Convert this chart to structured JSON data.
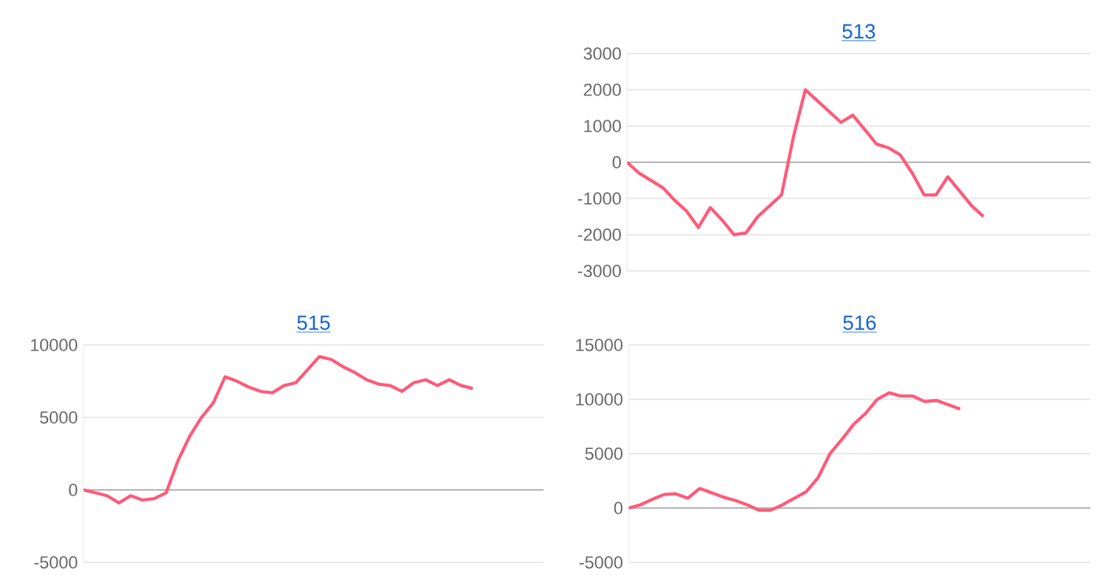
{
  "chart_data": [
    {
      "type": "line",
      "title": "513",
      "categories": [
        null,
        null,
        null,
        null,
        null,
        null,
        null,
        null,
        null,
        null,
        null,
        null,
        null,
        null,
        null,
        null,
        null,
        null,
        null,
        null,
        null,
        null,
        null,
        null,
        null,
        null,
        null,
        null,
        null,
        null,
        null,
        null,
        null,
        null,
        null,
        null,
        null,
        null,
        null,
        null
      ],
      "series": [
        {
          "color": "#ff5a78",
          "values": [
            0,
            -300,
            -500,
            -700,
            -1050,
            -1350,
            -1800,
            -1250,
            -1600,
            -2000,
            -1950,
            -1500,
            -1200,
            -900,
            700,
            2000,
            1700,
            1400,
            1100,
            1300,
            900,
            500,
            400,
            200,
            -300,
            -900,
            -900,
            -400,
            -800,
            -1200,
            -1500,
            null,
            null,
            null,
            null,
            null,
            null,
            null,
            null,
            null
          ]
        }
      ],
      "ylim": [
        -3000,
        3000
      ],
      "yticks": [
        -3000,
        -2000,
        -1000,
        0,
        1000,
        2000,
        3000
      ],
      "grid": "y",
      "tick_labels": "y",
      "marker": "none"
    },
    {
      "type": "line",
      "title": "515",
      "categories": [
        null,
        null,
        null,
        null,
        null,
        null,
        null,
        null,
        null,
        null,
        null,
        null,
        null,
        null,
        null,
        null,
        null,
        null,
        null,
        null,
        null,
        null,
        null,
        null,
        null,
        null,
        null,
        null,
        null,
        null,
        null,
        null,
        null,
        null,
        null,
        null,
        null,
        null,
        null,
        null
      ],
      "series": [
        {
          "color": "#ff5a78",
          "values": [
            0,
            -200,
            -400,
            -900,
            -400,
            -700,
            -600,
            -200,
            2000,
            3700,
            5000,
            6000,
            7800,
            7500,
            7100,
            6800,
            6700,
            7200,
            7400,
            8300,
            9200,
            9000,
            8500,
            8100,
            7600,
            7300,
            7200,
            6800,
            7400,
            7600,
            7200,
            7600,
            7200,
            7000,
            null,
            null,
            null,
            null,
            null,
            null
          ]
        }
      ],
      "ylim": [
        -5000,
        10000
      ],
      "yticks": [
        -5000,
        0,
        5000,
        10000
      ],
      "grid": "y",
      "tick_labels": "y",
      "marker": "none"
    },
    {
      "type": "line",
      "title": "516",
      "categories": [
        null,
        null,
        null,
        null,
        null,
        null,
        null,
        null,
        null,
        null,
        null,
        null,
        null,
        null,
        null,
        null,
        null,
        null,
        null,
        null,
        null,
        null,
        null,
        null,
        null,
        null,
        null,
        null,
        null,
        null,
        null,
        null,
        null,
        null,
        null,
        null,
        null,
        null,
        null,
        null
      ],
      "series": [
        {
          "color": "#ff5a78",
          "values": [
            0,
            300,
            800,
            1250,
            1300,
            900,
            1800,
            1400,
            1000,
            700,
            300,
            -200,
            -200,
            300,
            900,
            1500,
            2800,
            5000,
            6300,
            7700,
            8700,
            10000,
            10600,
            10300,
            10300,
            9800,
            9900,
            9500,
            9100,
            null,
            null,
            null,
            null,
            null,
            null,
            null,
            null,
            null,
            null,
            null
          ]
        }
      ],
      "ylim": [
        -5000,
        15000
      ],
      "yticks": [
        -5000,
        0,
        5000,
        10000,
        15000
      ],
      "grid": "y",
      "tick_labels": "y",
      "marker": "none"
    }
  ]
}
